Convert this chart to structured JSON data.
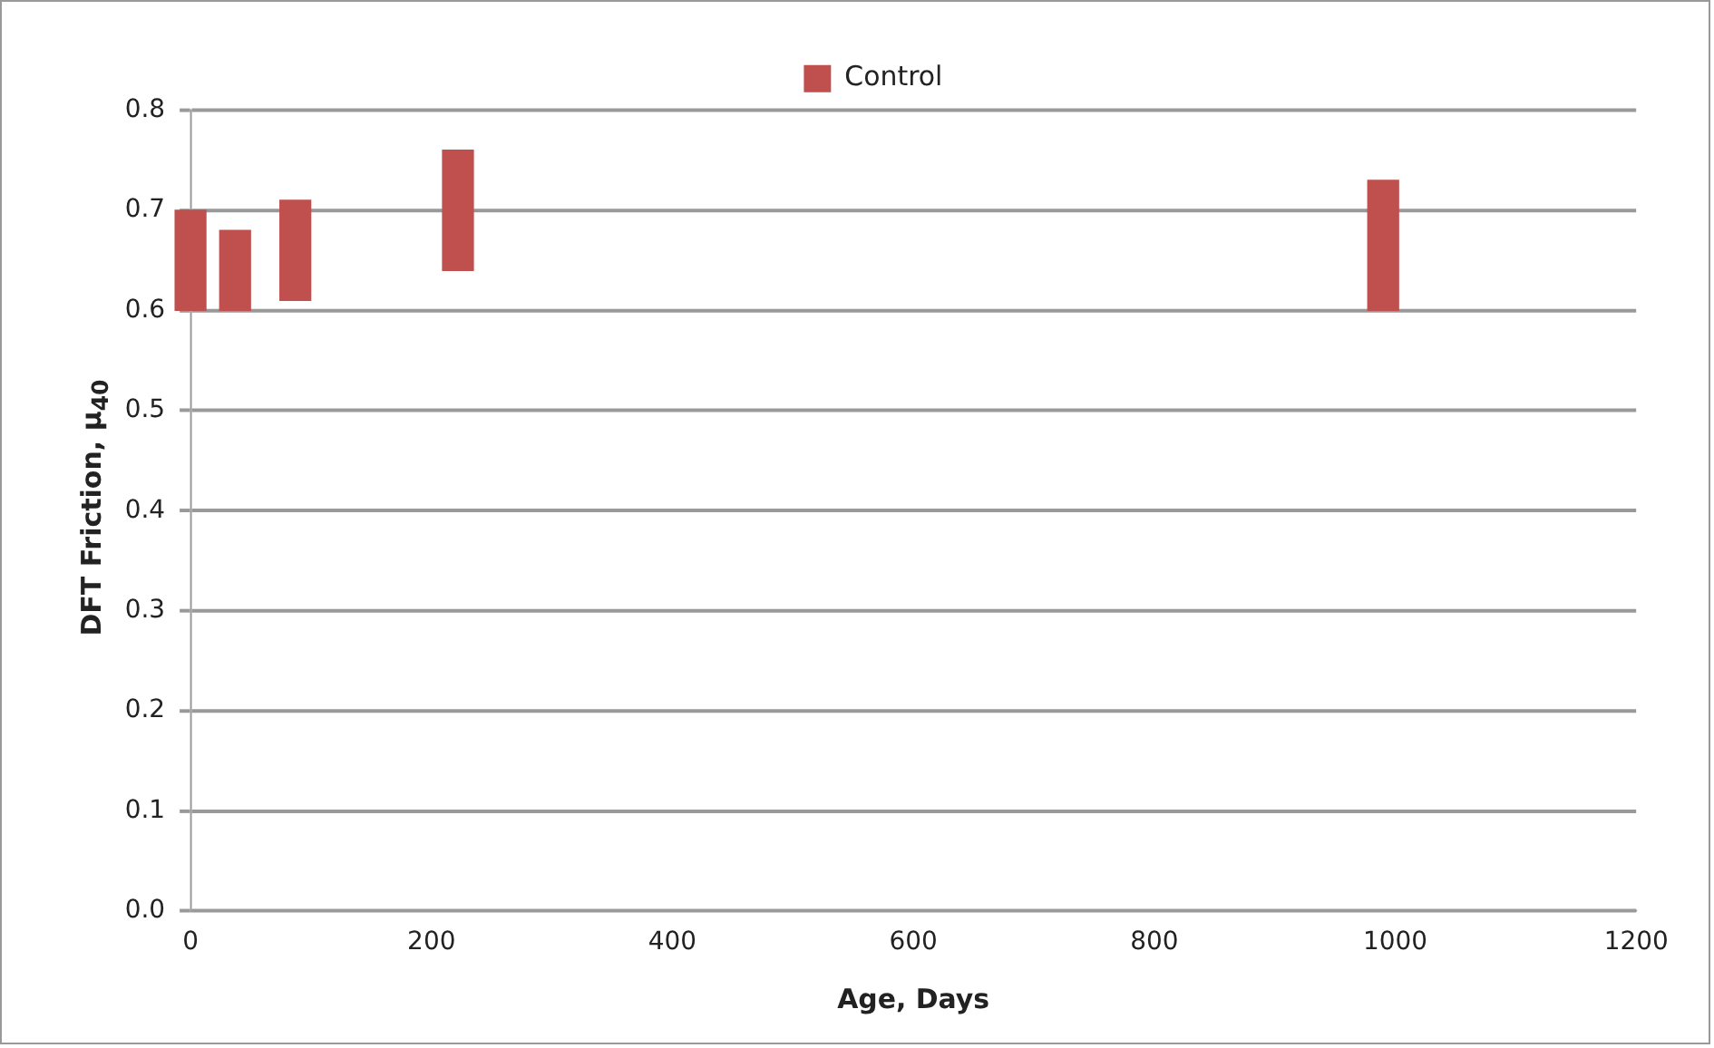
{
  "chart_data": {
    "type": "bar",
    "xlabel": "Age, Days",
    "ylabel": "DFT Friction, μ$_{40}$",
    "x": [
      0,
      37,
      87,
      222,
      990
    ],
    "series": [
      {
        "name": "Control",
        "color": "#c0504d",
        "values": [
          0.1,
          0.08,
          0.1,
          0.12,
          0.13
        ],
        "base": [
          0.6,
          0.6,
          0.61,
          0.64,
          0.6
        ]
      }
    ],
    "xlim": [
      0,
      1200
    ],
    "xticks": [
      0,
      200,
      400,
      600,
      800,
      1000,
      1200
    ],
    "ylim": [
      0,
      0.8
    ],
    "yticks": [
      {
        "value": 0,
        "label": "0.0"
      },
      {
        "value": 0.1,
        "label": "0.1"
      },
      {
        "value": 0.2,
        "label": "0.2"
      },
      {
        "value": 0.3,
        "label": "0.3"
      },
      {
        "value": 0.4,
        "label": "0.4"
      },
      {
        "value": 0.5,
        "label": "0.5"
      },
      {
        "value": 0.6,
        "label": "0.6"
      },
      {
        "value": 0.7,
        "label": "0.7"
      },
      {
        "value": 0.8,
        "label": "0.8"
      }
    ],
    "grid": "y",
    "legend": "top"
  }
}
